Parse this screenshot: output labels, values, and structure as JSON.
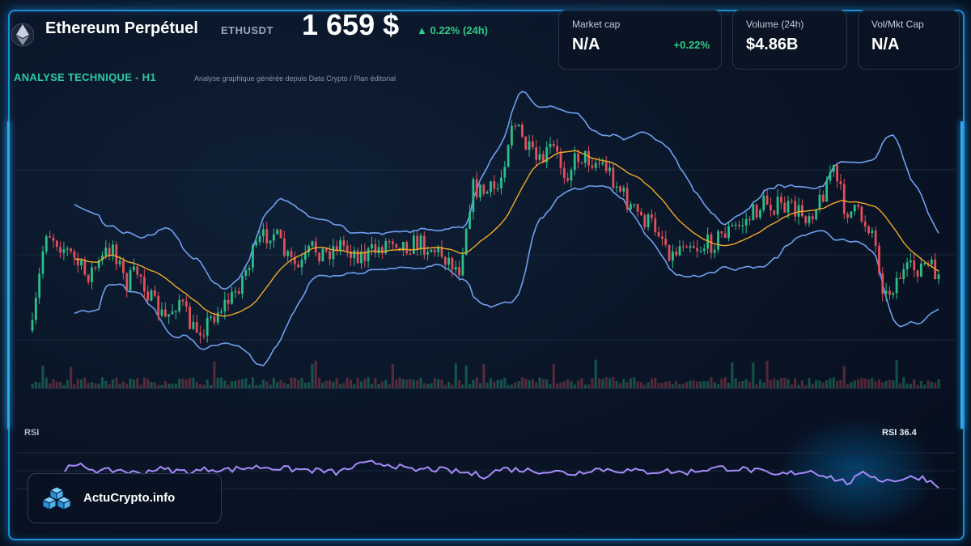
{
  "header": {
    "title": "Ethereum Perpétuel",
    "symbol": "ETHUSDT",
    "price": "1 659 $",
    "change": "▲ 0.22% (24h)",
    "subtitle": "ANALYSE TECHNIQUE - H1",
    "source": "Analyse graphique générée depuis Data Crypto / Plan éditorial"
  },
  "cards": [
    {
      "label": "Market cap",
      "value": "N/A",
      "change": "+0.22%"
    },
    {
      "label": "Volume (24h)",
      "value": "$4.86B"
    },
    {
      "label": "Vol/Mkt Cap",
      "value": "N/A"
    }
  ],
  "brand": {
    "name": "ActuCrypto.info"
  },
  "rsi": {
    "title": "RSI",
    "value_label": "RSI 36.4"
  },
  "colors": {
    "accent_green": "#2ecc87",
    "bull": "#2bbf8a",
    "bear": "#e0505a",
    "bollinger": "#6f9ff0",
    "ma": "#f0a92a",
    "rsi": "#a78bfa",
    "frame": "#1a8fd6"
  },
  "chart_data": {
    "type": "candlestick",
    "timeframe": "H1",
    "indicators": [
      "Bollinger Bands",
      "Moving Average",
      "Volume",
      "RSI"
    ],
    "price_shape": [
      0.18,
      0.55,
      0.5,
      0.45,
      0.38,
      0.42,
      0.5,
      0.35,
      0.4,
      0.28,
      0.22,
      0.3,
      0.18,
      0.2,
      0.26,
      0.3,
      0.4,
      0.5,
      0.55,
      0.45,
      0.4,
      0.48,
      0.46,
      0.5,
      0.47,
      0.45,
      0.48,
      0.52,
      0.49,
      0.5,
      0.48,
      0.45,
      0.4,
      0.7,
      0.68,
      0.7,
      0.95,
      0.85,
      0.78,
      0.85,
      0.75,
      0.82,
      0.8,
      0.78,
      0.7,
      0.62,
      0.58,
      0.55,
      0.45,
      0.52,
      0.48,
      0.5,
      0.54,
      0.56,
      0.6,
      0.65,
      0.63,
      0.62,
      0.6,
      0.64,
      0.78,
      0.62,
      0.6,
      0.55,
      0.3,
      0.38,
      0.4,
      0.42,
      0.38
    ],
    "rsi_shape": [
      52,
      55,
      49,
      51,
      47,
      52,
      50,
      49,
      52,
      51,
      53,
      54,
      52,
      51,
      50,
      48,
      55,
      58,
      56,
      50,
      52,
      50,
      48,
      45,
      52,
      51,
      50,
      49,
      47,
      52,
      51,
      50,
      49,
      50,
      48,
      51,
      53,
      52,
      50,
      45,
      48,
      50,
      44,
      38,
      48,
      40,
      42,
      44,
      36
    ],
    "rsi_last": 36.4
  }
}
